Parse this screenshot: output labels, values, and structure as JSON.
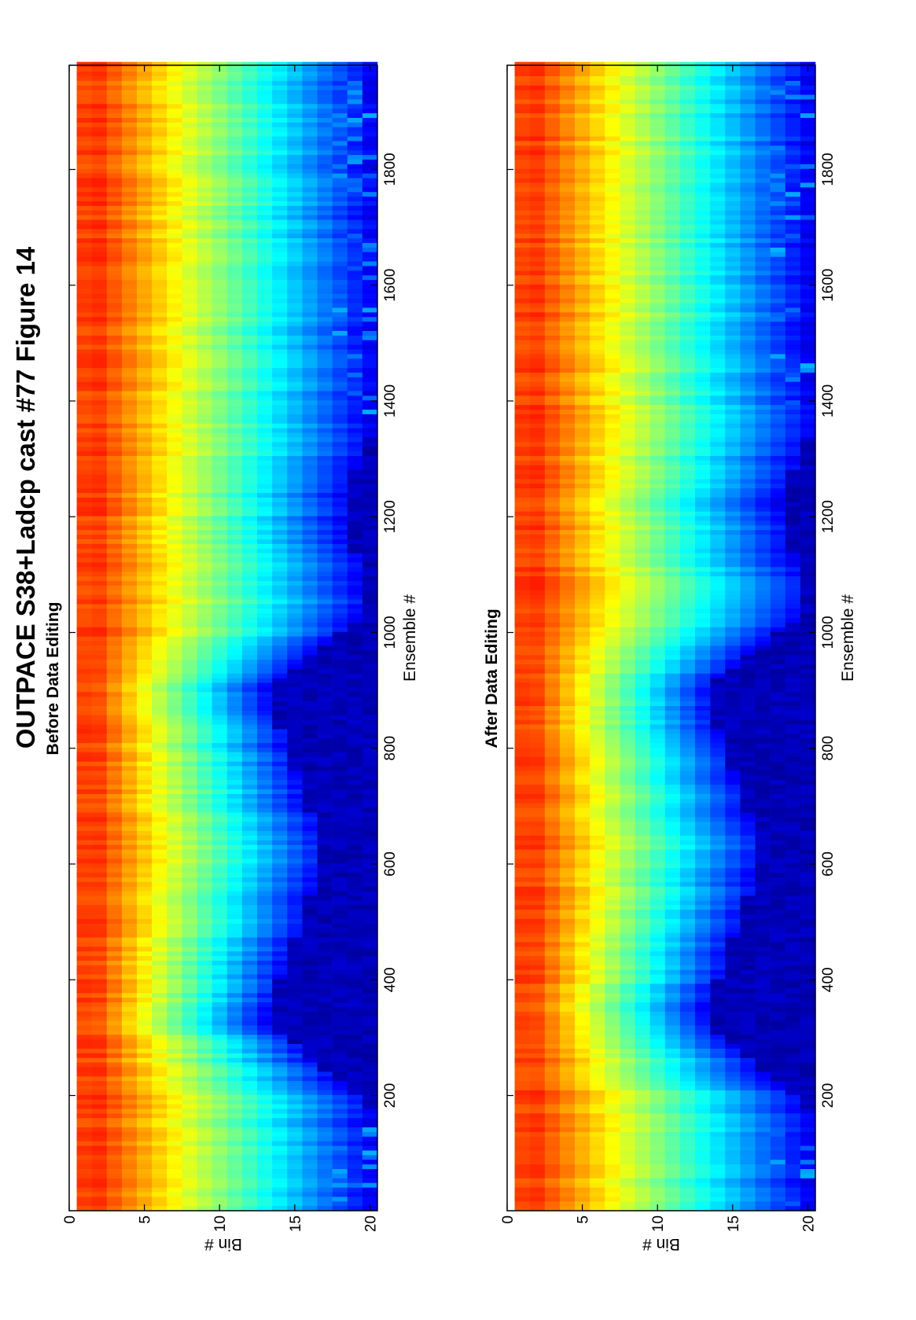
{
  "figure": {
    "main_title": "OUTPACE S38+Ladcp cast #77  Figure 14"
  },
  "chart_data": [
    {
      "type": "heatmap",
      "title": "Before Data Editing",
      "xlabel": "Ensemble #",
      "ylabel": "Bin #",
      "xlim": [
        1,
        1980
      ],
      "ylim": [
        0,
        20.5
      ],
      "y_reversed": true,
      "x_ticks": [
        200,
        400,
        600,
        800,
        1000,
        1200,
        1400,
        1600,
        1800
      ],
      "y_ticks": [
        0,
        5,
        10,
        15,
        20
      ],
      "colormap": "jet",
      "grid": false,
      "legend": "none",
      "bins": 20,
      "bottom_reference_profile": {
        "ensembles": [
          1,
          180,
          330,
          620,
          900,
          1040,
          1230,
          1340,
          1980
        ],
        "profile_bottom_bin": [
          20,
          20,
          13,
          17,
          13,
          20,
          18,
          20,
          20
        ]
      }
    },
    {
      "type": "heatmap",
      "title": "After Data Editing",
      "xlabel": "Ensemble #",
      "ylabel": "Bin #",
      "xlim": [
        1,
        1980
      ],
      "ylim": [
        0,
        20.5
      ],
      "y_reversed": true,
      "x_ticks": [
        200,
        400,
        600,
        800,
        1000,
        1200,
        1400,
        1600,
        1800
      ],
      "y_ticks": [
        0,
        5,
        10,
        15,
        20
      ],
      "colormap": "jet",
      "grid": false,
      "legend": "none",
      "bins": 20,
      "bottom_reference_profile": {
        "ensembles": [
          1,
          180,
          330,
          620,
          900,
          1040,
          1230,
          1340,
          1980
        ],
        "profile_bottom_bin": [
          20,
          20,
          13,
          17,
          13,
          20,
          18,
          20,
          20
        ]
      }
    }
  ]
}
